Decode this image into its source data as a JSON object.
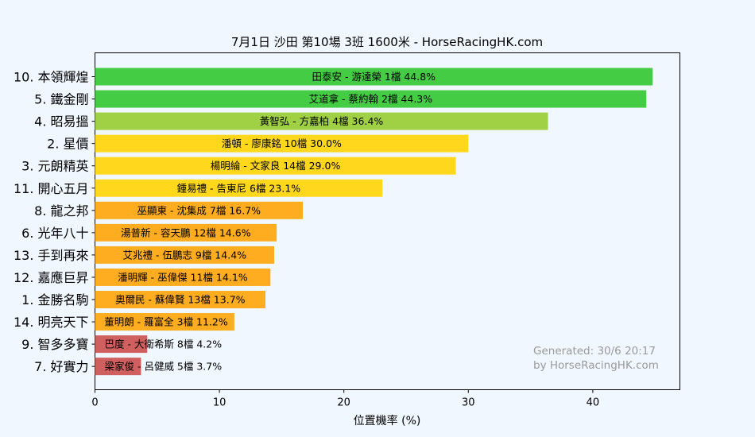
{
  "chart_data": {
    "type": "bar",
    "orientation": "horizontal",
    "title": "7月1日  沙田  第10場  3班  1600米 - HorseRacingHK.com",
    "xlabel": "位置機率 (%)",
    "ylabel": "",
    "xlim": [
      0,
      47
    ],
    "xticks": [
      0,
      10,
      20,
      30,
      40
    ],
    "grid": false,
    "categories": [
      "10. 本領輝煌",
      "5. 鐵金剛",
      "4. 昭易搵",
      "2. 星價",
      "3. 元朗精英",
      "11. 開心五月",
      "8. 龍之邦",
      "6. 光年八十",
      "13. 手到再來",
      "12. 嘉應巨昇",
      "1. 金勝名駒",
      "14. 明亮天下",
      "9. 智多多寶",
      "7. 好實力"
    ],
    "values": [
      44.8,
      44.3,
      36.4,
      30.0,
      29.0,
      23.1,
      16.7,
      14.6,
      14.4,
      14.1,
      13.7,
      11.2,
      4.2,
      3.7
    ],
    "bar_labels": [
      "田泰安 - 游達榮 1檔  44.8%",
      "艾道拿 - 蔡約翰 2檔  44.3%",
      "黃智弘 - 方嘉柏 4檔  36.4%",
      "潘頓 - 廖康銘 10檔  30.0%",
      "楊明綸 - 文家良 14檔  29.0%",
      "鍾易禮 - 告東尼 6檔  23.1%",
      "巫顯東 - 沈集成 7檔  16.7%",
      "湯普新 - 容天鵬 12檔  14.6%",
      "艾兆禮 - 伍鵬志 9檔  14.4%",
      "潘明輝 - 巫偉傑 11檔  14.1%",
      "奧爾民 - 蘇偉賢 13檔  13.7%",
      "董明朗 - 羅富全 3檔  11.2%",
      "巴度 - 大衛希斯 8檔  4.2%",
      "梁家俊 - 呂健威 5檔  3.7%"
    ],
    "colors": [
      "#44cc44",
      "#44cc44",
      "#a0d044",
      "#ffd81e",
      "#ffd81e",
      "#ffd81e",
      "#ffad20",
      "#ffad20",
      "#ffad20",
      "#ffad20",
      "#ffad20",
      "#ffad20",
      "#d06060",
      "#d06060"
    ],
    "watermark": [
      "Generated: 30/6 20:17",
      "by HorseRacingHK.com"
    ]
  }
}
